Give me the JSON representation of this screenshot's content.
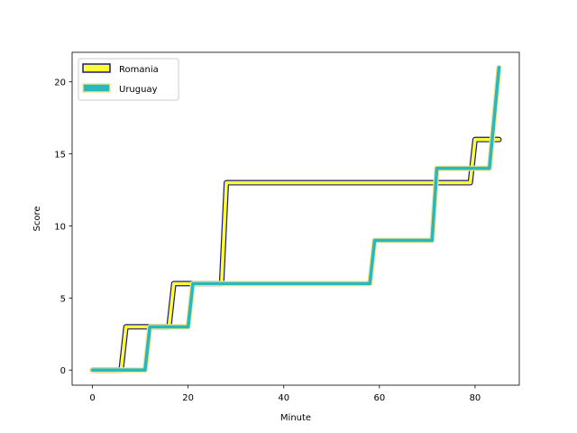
{
  "chart_data": {
    "type": "line",
    "title": "",
    "xlabel": "Minute",
    "ylabel": "Score",
    "xlim": [
      -4.25,
      89.25
    ],
    "ylim": [
      -1.05,
      22.05
    ],
    "xticks": [
      0,
      20,
      40,
      60,
      80
    ],
    "yticks": [
      0,
      5,
      10,
      15,
      20
    ],
    "grid": false,
    "legend_position": "upper-left",
    "series": [
      {
        "name": "Romania",
        "color": "#ffff33",
        "edge_color": "#1a1a80",
        "x": [
          0,
          6,
          7,
          16,
          17,
          27,
          28,
          79,
          80,
          85
        ],
        "y": [
          0,
          0,
          3,
          3,
          6,
          6,
          13,
          13,
          16,
          16
        ]
      },
      {
        "name": "Uruguay",
        "color": "#2ab8c0",
        "edge_color": "#f0e68c",
        "x": [
          0,
          11,
          12,
          20,
          21,
          58,
          59,
          71,
          72,
          83,
          85
        ],
        "y": [
          0,
          0,
          3,
          3,
          6,
          6,
          9,
          9,
          14,
          14,
          21
        ]
      }
    ]
  }
}
